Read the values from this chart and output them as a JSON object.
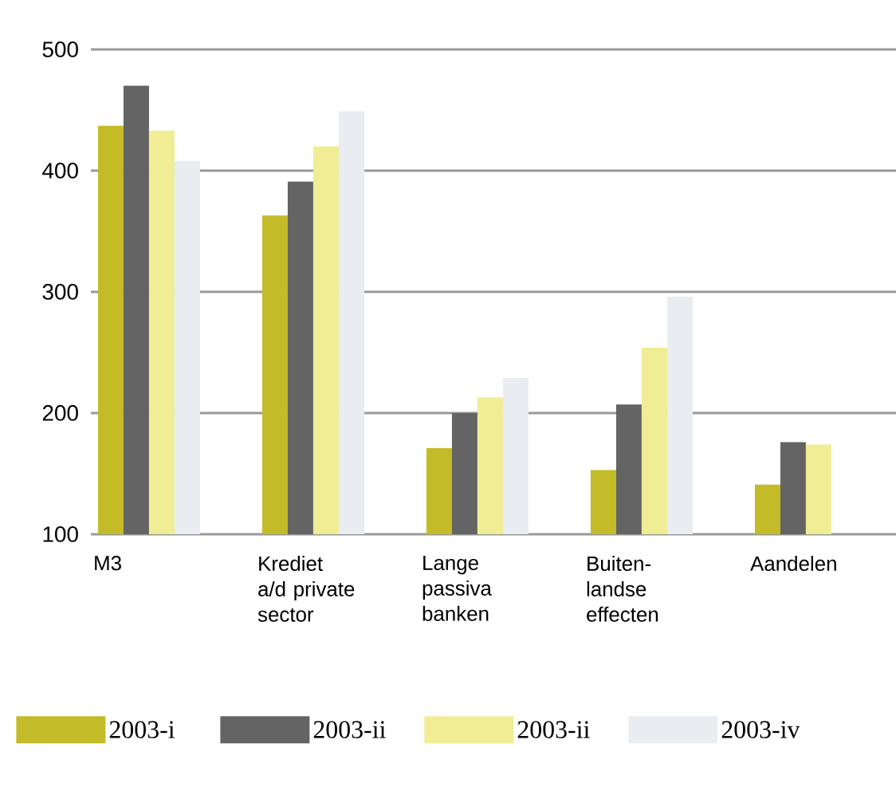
{
  "chart_data": {
    "type": "bar",
    "categories": [
      "M3",
      "Krediet a/d private sector",
      "Lange passiva banken",
      "Buiten-landse effecten",
      "Aandelen"
    ],
    "series": [
      {
        "name": "2003-i",
        "color": "#c3bb28",
        "values": [
          437,
          363,
          171,
          153,
          141
        ]
      },
      {
        "name": "2003-ii",
        "color": "#646464",
        "values": [
          470,
          391,
          200,
          207,
          176
        ]
      },
      {
        "name": "2003-ii",
        "color": "#f0ed94",
        "values": [
          433,
          420,
          213,
          254,
          174
        ]
      },
      {
        "name": "2003-iv",
        "color": "#e9ecf1",
        "values": [
          408,
          449,
          229,
          296,
          null
        ]
      }
    ],
    "ylim": [
      100,
      500
    ],
    "yticks": [
      100,
      200,
      300,
      400,
      500
    ],
    "grid": "y",
    "legend": "bottom"
  }
}
